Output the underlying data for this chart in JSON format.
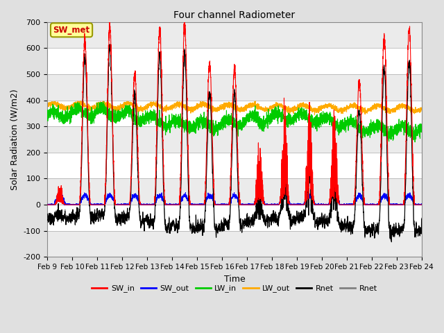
{
  "title": "Four channel Radiometer",
  "xlabel": "Time",
  "ylabel": "Solar Radiation (W/m2)",
  "ylim": [
    -200,
    700
  ],
  "yticks": [
    -200,
    -100,
    0,
    100,
    200,
    300,
    400,
    500,
    600,
    700
  ],
  "x_labels": [
    "Feb 9",
    "Feb 10",
    "Feb 11",
    "Feb 12",
    "Feb 13",
    "Feb 14",
    "Feb 15",
    "Feb 16",
    "Feb 17",
    "Feb 18",
    "Feb 19",
    "Feb 20",
    "Feb 21",
    "Feb 22",
    "Feb 23",
    "Feb 24"
  ],
  "legend_labels": [
    "SW_in",
    "SW_out",
    "LW_in",
    "LW_out",
    "Rnet",
    "Rnet"
  ],
  "legend_colors": [
    "#ff0000",
    "#0000ff",
    "#00cc00",
    "#ffaa00",
    "#000000",
    "#808080"
  ],
  "annotation_text": "SW_met",
  "annotation_color": "#cc0000",
  "annotation_bg": "#ffff99",
  "bg_color": "#e0e0e0",
  "plot_bg": "#ffffff",
  "num_days": 15,
  "points_per_day": 288,
  "grid_color": "#cccccc",
  "line_width": 0.8,
  "figsize": [
    6.4,
    4.8
  ],
  "dpi": 100
}
